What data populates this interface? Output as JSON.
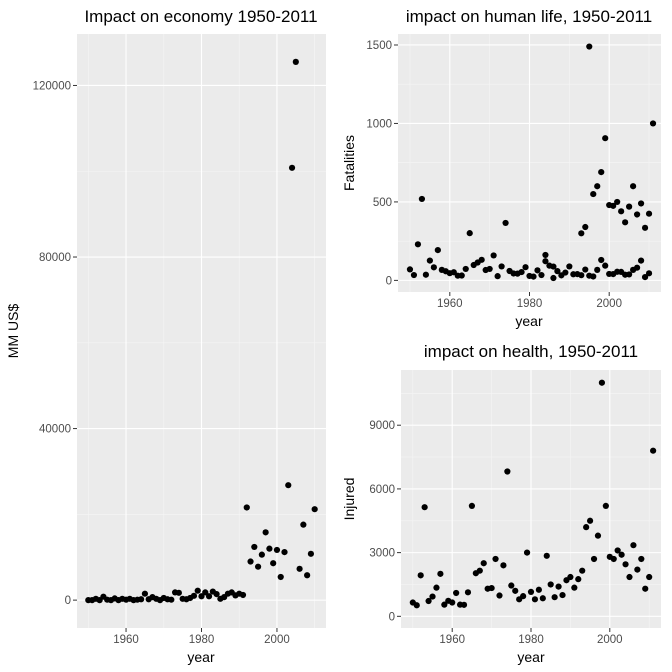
{
  "chart_data": [
    {
      "type": "scatter",
      "title": "Impact on economy 1950-2011",
      "xlabel": "year",
      "ylabel": "MM US$",
      "xlim": [
        1947,
        2013
      ],
      "ylim": [
        -6500,
        132000
      ],
      "x_ticks": [
        1960,
        1980,
        2000
      ],
      "y_ticks": [
        0,
        40000,
        80000,
        120000
      ],
      "x_tick_labels": [
        "1960",
        "1980",
        "2000"
      ],
      "y_tick_labels": [
        "0",
        "40000",
        "80000",
        "120000"
      ],
      "grid": true,
      "points": [
        {
          "x": 1950,
          "y": 0
        },
        {
          "x": 1951,
          "y": 0
        },
        {
          "x": 1952,
          "y": 300
        },
        {
          "x": 1953,
          "y": 0
        },
        {
          "x": 1954,
          "y": 800
        },
        {
          "x": 1955,
          "y": 100
        },
        {
          "x": 1956,
          "y": 0
        },
        {
          "x": 1957,
          "y": 400
        },
        {
          "x": 1958,
          "y": 0
        },
        {
          "x": 1959,
          "y": 300
        },
        {
          "x": 1960,
          "y": 100
        },
        {
          "x": 1961,
          "y": 300
        },
        {
          "x": 1962,
          "y": 0
        },
        {
          "x": 1963,
          "y": 100
        },
        {
          "x": 1964,
          "y": 200
        },
        {
          "x": 1965,
          "y": 1500
        },
        {
          "x": 1966,
          "y": 200
        },
        {
          "x": 1967,
          "y": 700
        },
        {
          "x": 1968,
          "y": 300
        },
        {
          "x": 1969,
          "y": 0
        },
        {
          "x": 1970,
          "y": 500
        },
        {
          "x": 1971,
          "y": 200
        },
        {
          "x": 1972,
          "y": 100
        },
        {
          "x": 1973,
          "y": 1800
        },
        {
          "x": 1974,
          "y": 1700
        },
        {
          "x": 1975,
          "y": 300
        },
        {
          "x": 1976,
          "y": 200
        },
        {
          "x": 1977,
          "y": 500
        },
        {
          "x": 1978,
          "y": 1000
        },
        {
          "x": 1979,
          "y": 2200
        },
        {
          "x": 1980,
          "y": 900
        },
        {
          "x": 1981,
          "y": 1800
        },
        {
          "x": 1982,
          "y": 900
        },
        {
          "x": 1983,
          "y": 2000
        },
        {
          "x": 1984,
          "y": 1400
        },
        {
          "x": 1985,
          "y": 300
        },
        {
          "x": 1986,
          "y": 700
        },
        {
          "x": 1987,
          "y": 1500
        },
        {
          "x": 1988,
          "y": 1800
        },
        {
          "x": 1989,
          "y": 1100
        },
        {
          "x": 1990,
          "y": 1500
        },
        {
          "x": 1991,
          "y": 1200
        },
        {
          "x": 1992,
          "y": 21600
        },
        {
          "x": 1993,
          "y": 9000
        },
        {
          "x": 1994,
          "y": 12400
        },
        {
          "x": 1995,
          "y": 7800
        },
        {
          "x": 1996,
          "y": 10600
        },
        {
          "x": 1997,
          "y": 15800
        },
        {
          "x": 1998,
          "y": 12000
        },
        {
          "x": 1999,
          "y": 8600
        },
        {
          "x": 2000,
          "y": 11700
        },
        {
          "x": 2001,
          "y": 5400
        },
        {
          "x": 2002,
          "y": 11200
        },
        {
          "x": 2003,
          "y": 26800
        },
        {
          "x": 2004,
          "y": 100800
        },
        {
          "x": 2005,
          "y": 125500
        },
        {
          "x": 2006,
          "y": 7300
        },
        {
          "x": 2007,
          "y": 17600
        },
        {
          "x": 2008,
          "y": 5800
        },
        {
          "x": 2009,
          "y": 10800
        },
        {
          "x": 2010,
          "y": 21200
        }
      ]
    },
    {
      "type": "scatter",
      "title": "impact on human life, 1950-2011",
      "xlabel": "year",
      "ylabel": "Fatalities",
      "xlim": [
        1947,
        2013
      ],
      "ylim": [
        -74,
        1570
      ],
      "x_ticks": [
        1960,
        1980,
        2000
      ],
      "y_ticks": [
        0,
        500,
        1000,
        1500
      ],
      "x_tick_labels": [
        "1960",
        "1980",
        "2000"
      ],
      "y_tick_labels": [
        "0",
        "500",
        "1000",
        "1500"
      ],
      "grid": true,
      "points": [
        {
          "x": 1950,
          "y": 70
        },
        {
          "x": 1951,
          "y": 34
        },
        {
          "x": 1952,
          "y": 230
        },
        {
          "x": 1953,
          "y": 519
        },
        {
          "x": 1954,
          "y": 36
        },
        {
          "x": 1955,
          "y": 126
        },
        {
          "x": 1956,
          "y": 83
        },
        {
          "x": 1957,
          "y": 193
        },
        {
          "x": 1958,
          "y": 67
        },
        {
          "x": 1959,
          "y": 58
        },
        {
          "x": 1960,
          "y": 46
        },
        {
          "x": 1961,
          "y": 52
        },
        {
          "x": 1962,
          "y": 30
        },
        {
          "x": 1963,
          "y": 31
        },
        {
          "x": 1964,
          "y": 73
        },
        {
          "x": 1965,
          "y": 301
        },
        {
          "x": 1966,
          "y": 98
        },
        {
          "x": 1967,
          "y": 114
        },
        {
          "x": 1968,
          "y": 131
        },
        {
          "x": 1969,
          "y": 66
        },
        {
          "x": 1970,
          "y": 73
        },
        {
          "x": 1971,
          "y": 159
        },
        {
          "x": 1972,
          "y": 27
        },
        {
          "x": 1973,
          "y": 89
        },
        {
          "x": 1974,
          "y": 366
        },
        {
          "x": 1975,
          "y": 60
        },
        {
          "x": 1976,
          "y": 44
        },
        {
          "x": 1977,
          "y": 43
        },
        {
          "x": 1978,
          "y": 53
        },
        {
          "x": 1979,
          "y": 84
        },
        {
          "x": 1980,
          "y": 28
        },
        {
          "x": 1981,
          "y": 24
        },
        {
          "x": 1982,
          "y": 64
        },
        {
          "x": 1983,
          "y": 34
        },
        {
          "x": 1984,
          "y": 122
        },
        {
          "x": 1985,
          "y": 94
        },
        {
          "x": 1986,
          "y": 15
        },
        {
          "x": 1987,
          "y": 59
        },
        {
          "x": 1988,
          "y": 32
        },
        {
          "x": 1989,
          "y": 50
        },
        {
          "x": 1990,
          "y": 89
        },
        {
          "x": 1991,
          "y": 39
        },
        {
          "x": 1992,
          "y": 40
        },
        {
          "x": 1993,
          "y": 33
        },
        {
          "x": 1994,
          "y": 69
        },
        {
          "x": 1995,
          "y": 30
        },
        {
          "x": 1996,
          "y": 25
        },
        {
          "x": 1997,
          "y": 67
        },
        {
          "x": 1998,
          "y": 130
        },
        {
          "x": 1999,
          "y": 94
        },
        {
          "x": 2000,
          "y": 41
        },
        {
          "x": 2001,
          "y": 40
        },
        {
          "x": 2002,
          "y": 55
        },
        {
          "x": 2003,
          "y": 54
        },
        {
          "x": 2004,
          "y": 36
        },
        {
          "x": 2005,
          "y": 38
        },
        {
          "x": 2006,
          "y": 67
        },
        {
          "x": 2007,
          "y": 81
        },
        {
          "x": 2008,
          "y": 126
        },
        {
          "x": 2009,
          "y": 21
        },
        {
          "x": 2010,
          "y": 45
        },
        {
          "x": 1984,
          "y": 162
        },
        {
          "x": 1986,
          "y": 88
        },
        {
          "x": 1993,
          "y": 300
        },
        {
          "x": 1994,
          "y": 340
        },
        {
          "x": 1995,
          "y": 1490
        },
        {
          "x": 1996,
          "y": 550
        },
        {
          "x": 1997,
          "y": 600
        },
        {
          "x": 1998,
          "y": 690
        },
        {
          "x": 1999,
          "y": 906
        },
        {
          "x": 2000,
          "y": 480
        },
        {
          "x": 2001,
          "y": 475
        },
        {
          "x": 2002,
          "y": 500
        },
        {
          "x": 2003,
          "y": 440
        },
        {
          "x": 2004,
          "y": 370
        },
        {
          "x": 2005,
          "y": 470
        },
        {
          "x": 2006,
          "y": 600
        },
        {
          "x": 2007,
          "y": 420
        },
        {
          "x": 2008,
          "y": 490
        },
        {
          "x": 2009,
          "y": 335
        },
        {
          "x": 2010,
          "y": 425
        },
        {
          "x": 2011,
          "y": 1000
        }
      ]
    },
    {
      "type": "scatter",
      "title": "impact on health, 1950-2011",
      "xlabel": "year",
      "ylabel": "Injured",
      "xlim": [
        1947,
        2013
      ],
      "ylim": [
        -550,
        11600
      ],
      "x_ticks": [
        1960,
        1980,
        2000
      ],
      "y_ticks": [
        0,
        3000,
        6000,
        9000
      ],
      "x_tick_labels": [
        "1960",
        "1980",
        "2000"
      ],
      "y_tick_labels": [
        "0",
        "3000",
        "6000",
        "9000"
      ],
      "grid": true,
      "points": [
        {
          "x": 1950,
          "y": 650
        },
        {
          "x": 1951,
          "y": 520
        },
        {
          "x": 1952,
          "y": 1930
        },
        {
          "x": 1953,
          "y": 5140
        },
        {
          "x": 1954,
          "y": 720
        },
        {
          "x": 1955,
          "y": 930
        },
        {
          "x": 1956,
          "y": 1350
        },
        {
          "x": 1957,
          "y": 2000
        },
        {
          "x": 1958,
          "y": 550
        },
        {
          "x": 1959,
          "y": 730
        },
        {
          "x": 1960,
          "y": 650
        },
        {
          "x": 1961,
          "y": 1100
        },
        {
          "x": 1962,
          "y": 550
        },
        {
          "x": 1963,
          "y": 540
        },
        {
          "x": 1964,
          "y": 1130
        },
        {
          "x": 1965,
          "y": 5200
        },
        {
          "x": 1966,
          "y": 2030
        },
        {
          "x": 1967,
          "y": 2150
        },
        {
          "x": 1968,
          "y": 2500
        },
        {
          "x": 1969,
          "y": 1300
        },
        {
          "x": 1970,
          "y": 1330
        },
        {
          "x": 1971,
          "y": 2700
        },
        {
          "x": 1972,
          "y": 980
        },
        {
          "x": 1973,
          "y": 2400
        },
        {
          "x": 1974,
          "y": 6820
        },
        {
          "x": 1975,
          "y": 1450
        },
        {
          "x": 1976,
          "y": 1200
        },
        {
          "x": 1977,
          "y": 800
        },
        {
          "x": 1978,
          "y": 950
        },
        {
          "x": 1979,
          "y": 3000
        },
        {
          "x": 1980,
          "y": 1150
        },
        {
          "x": 1981,
          "y": 800
        },
        {
          "x": 1982,
          "y": 1250
        },
        {
          "x": 1983,
          "y": 850
        },
        {
          "x": 1984,
          "y": 2850
        },
        {
          "x": 1985,
          "y": 1500
        },
        {
          "x": 1986,
          "y": 900
        },
        {
          "x": 1987,
          "y": 1400
        },
        {
          "x": 1988,
          "y": 1000
        },
        {
          "x": 1989,
          "y": 1700
        },
        {
          "x": 1990,
          "y": 1850
        },
        {
          "x": 1991,
          "y": 1350
        },
        {
          "x": 1992,
          "y": 1750
        },
        {
          "x": 1993,
          "y": 2150
        },
        {
          "x": 1994,
          "y": 4200
        },
        {
          "x": 1995,
          "y": 4500
        },
        {
          "x": 1996,
          "y": 2700
        },
        {
          "x": 1997,
          "y": 3800
        },
        {
          "x": 1998,
          "y": 11000
        },
        {
          "x": 1999,
          "y": 5200
        },
        {
          "x": 2000,
          "y": 2800
        },
        {
          "x": 2001,
          "y": 2700
        },
        {
          "x": 2002,
          "y": 3100
        },
        {
          "x": 2003,
          "y": 2900
        },
        {
          "x": 2004,
          "y": 2450
        },
        {
          "x": 2005,
          "y": 1850
        },
        {
          "x": 2006,
          "y": 3350
        },
        {
          "x": 2007,
          "y": 2200
        },
        {
          "x": 2008,
          "y": 2700
        },
        {
          "x": 2009,
          "y": 1300
        },
        {
          "x": 2010,
          "y": 1850
        },
        {
          "x": 2011,
          "y": 7800
        }
      ]
    }
  ]
}
